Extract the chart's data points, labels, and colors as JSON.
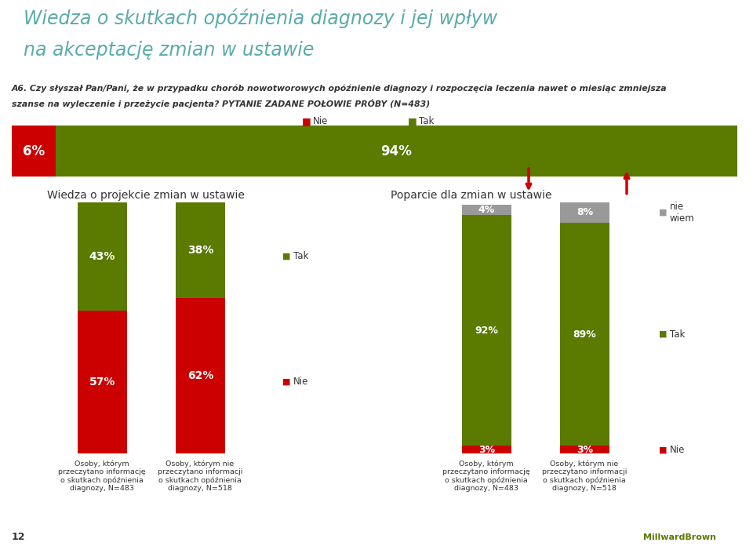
{
  "title_line1": "Wiedza o skutkach opóźnienia diagnozy i jej wpływ",
  "title_line2": "na akceptację zmian w ustawie",
  "question_text1": "A6. Czy słyszał Pan/Pani, że w przypadku chorób nowotworowych opóźnienie diagnozy i rozpoczęcia leczenia nawet o miesiąc zmniejsza",
  "question_text2": "szanse na wyleczenie i przeżycie pacjenta? PYTANIE ZADANE POŁOWIE PRÓBY (N=483)",
  "legend_nie": "Nie",
  "legend_tak": "Tak",
  "top_bar": {
    "nie_pct": 6,
    "tak_pct": 94,
    "nie_label": "6%",
    "tak_label": "94%"
  },
  "left_section_title": "Wiedza o projekcie zmian w ustawie",
  "left_bars": [
    {
      "tak_pct": 43,
      "nie_pct": 57,
      "tak_label": "43%",
      "nie_label": "57%",
      "xlabel": "Osoby, którym\nprzeczytano informację\no skutkach opóźnienia\ndiagnozy, N=483"
    },
    {
      "tak_pct": 38,
      "nie_pct": 62,
      "tak_label": "38%",
      "nie_label": "62%",
      "xlabel": "Osoby, którym nie\nprzeczytano informacji\no skutkach opóźnienia\ndiagnozy, N=518"
    }
  ],
  "right_section_title": "Poparcie dla zmian w ustawie",
  "right_bars": [
    {
      "nie_pct": 3,
      "tak_pct": 92,
      "nw_pct": 4,
      "nie_label": "3%",
      "tak_label": "92%",
      "nw_label": "4%",
      "xlabel": "Osoby, którym\nprzeczytano informację\no skutkach opóźnienia\ndiagnozy, N=483"
    },
    {
      "nie_pct": 3,
      "tak_pct": 89,
      "nw_pct": 8,
      "nie_label": "3%",
      "tak_label": "89%",
      "nw_label": "8%",
      "xlabel": "Osoby, którym nie\nprzeczytano informacji\no skutkach opóźnienia\ndiagnozy, N=518"
    }
  ],
  "color_nie": "#cc0000",
  "color_tak": "#5a7a00",
  "color_nw": "#999999",
  "color_title": "#5aabab",
  "color_bg": "#ffffff",
  "color_text": "#333333",
  "page_number": "12"
}
